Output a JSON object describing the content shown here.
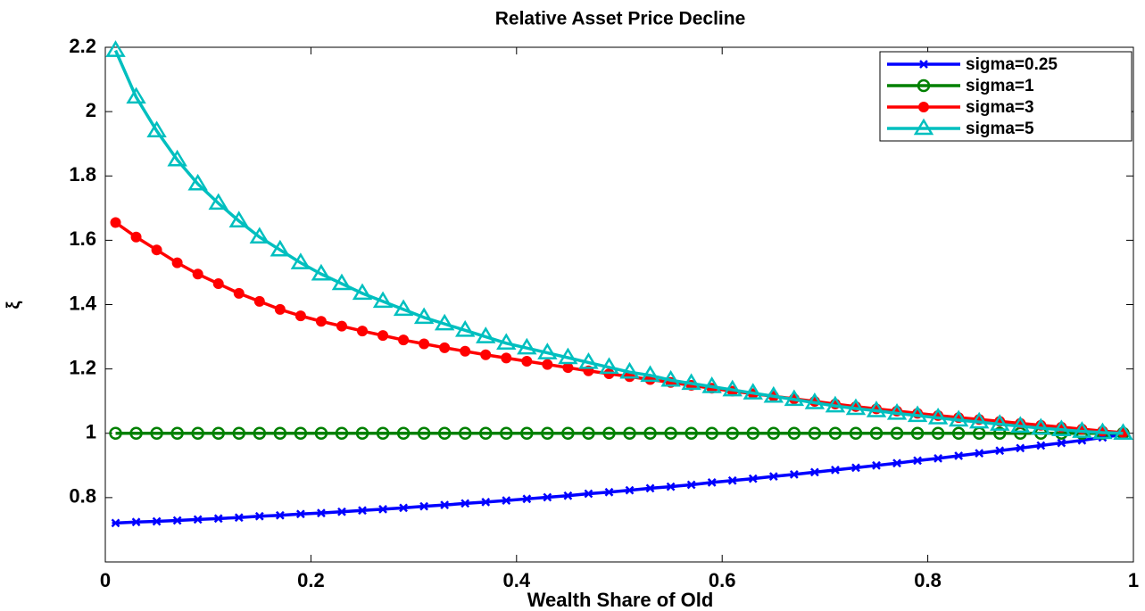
{
  "chart_data": {
    "type": "line",
    "title": "Relative Asset Price Decline",
    "x_label": "Wealth Share of Old",
    "y_label": "ξ",
    "x": [
      0.01,
      0.03,
      0.05,
      0.07,
      0.09,
      0.11,
      0.13,
      0.15,
      0.17,
      0.19,
      0.21,
      0.23,
      0.25,
      0.27,
      0.29,
      0.31,
      0.33,
      0.35,
      0.37,
      0.39,
      0.41,
      0.43,
      0.45,
      0.47,
      0.49,
      0.51,
      0.53,
      0.55,
      0.57,
      0.59,
      0.61,
      0.63,
      0.65,
      0.67,
      0.69,
      0.71,
      0.73,
      0.75,
      0.77,
      0.79,
      0.81,
      0.83,
      0.85,
      0.87,
      0.89,
      0.91,
      0.93,
      0.95,
      0.97,
      0.99
    ],
    "series": [
      {
        "name": "sigma=0.25",
        "color": "#0000ff",
        "marker": "x",
        "values": [
          0.721,
          0.724,
          0.726,
          0.729,
          0.732,
          0.735,
          0.738,
          0.742,
          0.745,
          0.749,
          0.752,
          0.756,
          0.76,
          0.764,
          0.768,
          0.773,
          0.777,
          0.782,
          0.786,
          0.791,
          0.796,
          0.801,
          0.806,
          0.812,
          0.817,
          0.823,
          0.829,
          0.834,
          0.84,
          0.847,
          0.853,
          0.859,
          0.866,
          0.872,
          0.879,
          0.886,
          0.893,
          0.9,
          0.907,
          0.915,
          0.922,
          0.93,
          0.938,
          0.946,
          0.954,
          0.962,
          0.97,
          0.978,
          0.987,
          0.996
        ]
      },
      {
        "name": "sigma=1",
        "color": "#008000",
        "marker": "circle-open",
        "values": [
          1,
          1,
          1,
          1,
          1,
          1,
          1,
          1,
          1,
          1,
          1,
          1,
          1,
          1,
          1,
          1,
          1,
          1,
          1,
          1,
          1,
          1,
          1,
          1,
          1,
          1,
          1,
          1,
          1,
          1,
          1,
          1,
          1,
          1,
          1,
          1,
          1,
          1,
          1,
          1,
          1,
          1,
          1,
          1,
          1,
          1,
          1,
          1,
          1,
          1
        ]
      },
      {
        "name": "sigma=3",
        "color": "#ff0000",
        "marker": "circle-filled",
        "values": [
          1.655,
          1.61,
          1.57,
          1.53,
          1.495,
          1.465,
          1.435,
          1.41,
          1.385,
          1.365,
          1.348,
          1.333,
          1.318,
          1.304,
          1.29,
          1.278,
          1.266,
          1.255,
          1.244,
          1.234,
          1.224,
          1.214,
          1.204,
          1.194,
          1.185,
          1.176,
          1.167,
          1.158,
          1.149,
          1.14,
          1.131,
          1.123,
          1.115,
          1.107,
          1.099,
          1.091,
          1.083,
          1.076,
          1.069,
          1.062,
          1.055,
          1.049,
          1.043,
          1.037,
          1.031,
          1.025,
          1.019,
          1.013,
          1.007,
          1.002
        ]
      },
      {
        "name": "sigma=5",
        "color": "#00bfbf",
        "marker": "triangle-open",
        "values": [
          2.19,
          2.045,
          1.94,
          1.85,
          1.775,
          1.715,
          1.66,
          1.61,
          1.57,
          1.53,
          1.495,
          1.465,
          1.435,
          1.41,
          1.385,
          1.36,
          1.34,
          1.32,
          1.3,
          1.28,
          1.265,
          1.25,
          1.235,
          1.22,
          1.205,
          1.19,
          1.18,
          1.165,
          1.155,
          1.145,
          1.135,
          1.125,
          1.115,
          1.105,
          1.095,
          1.085,
          1.077,
          1.07,
          1.062,
          1.055,
          1.048,
          1.041,
          1.035,
          1.028,
          1.022,
          1.016,
          1.011,
          1.006,
          1.002,
          1.0
        ]
      }
    ],
    "xlim": [
      0,
      1
    ],
    "xticks": [
      0,
      0.2,
      0.4,
      0.6,
      0.8,
      1
    ],
    "ylim": [
      0.6,
      2.2
    ],
    "yticks": [
      0.8,
      1,
      1.2,
      1.4,
      1.6,
      1.8,
      2,
      2.2
    ],
    "legend": "upper right"
  }
}
